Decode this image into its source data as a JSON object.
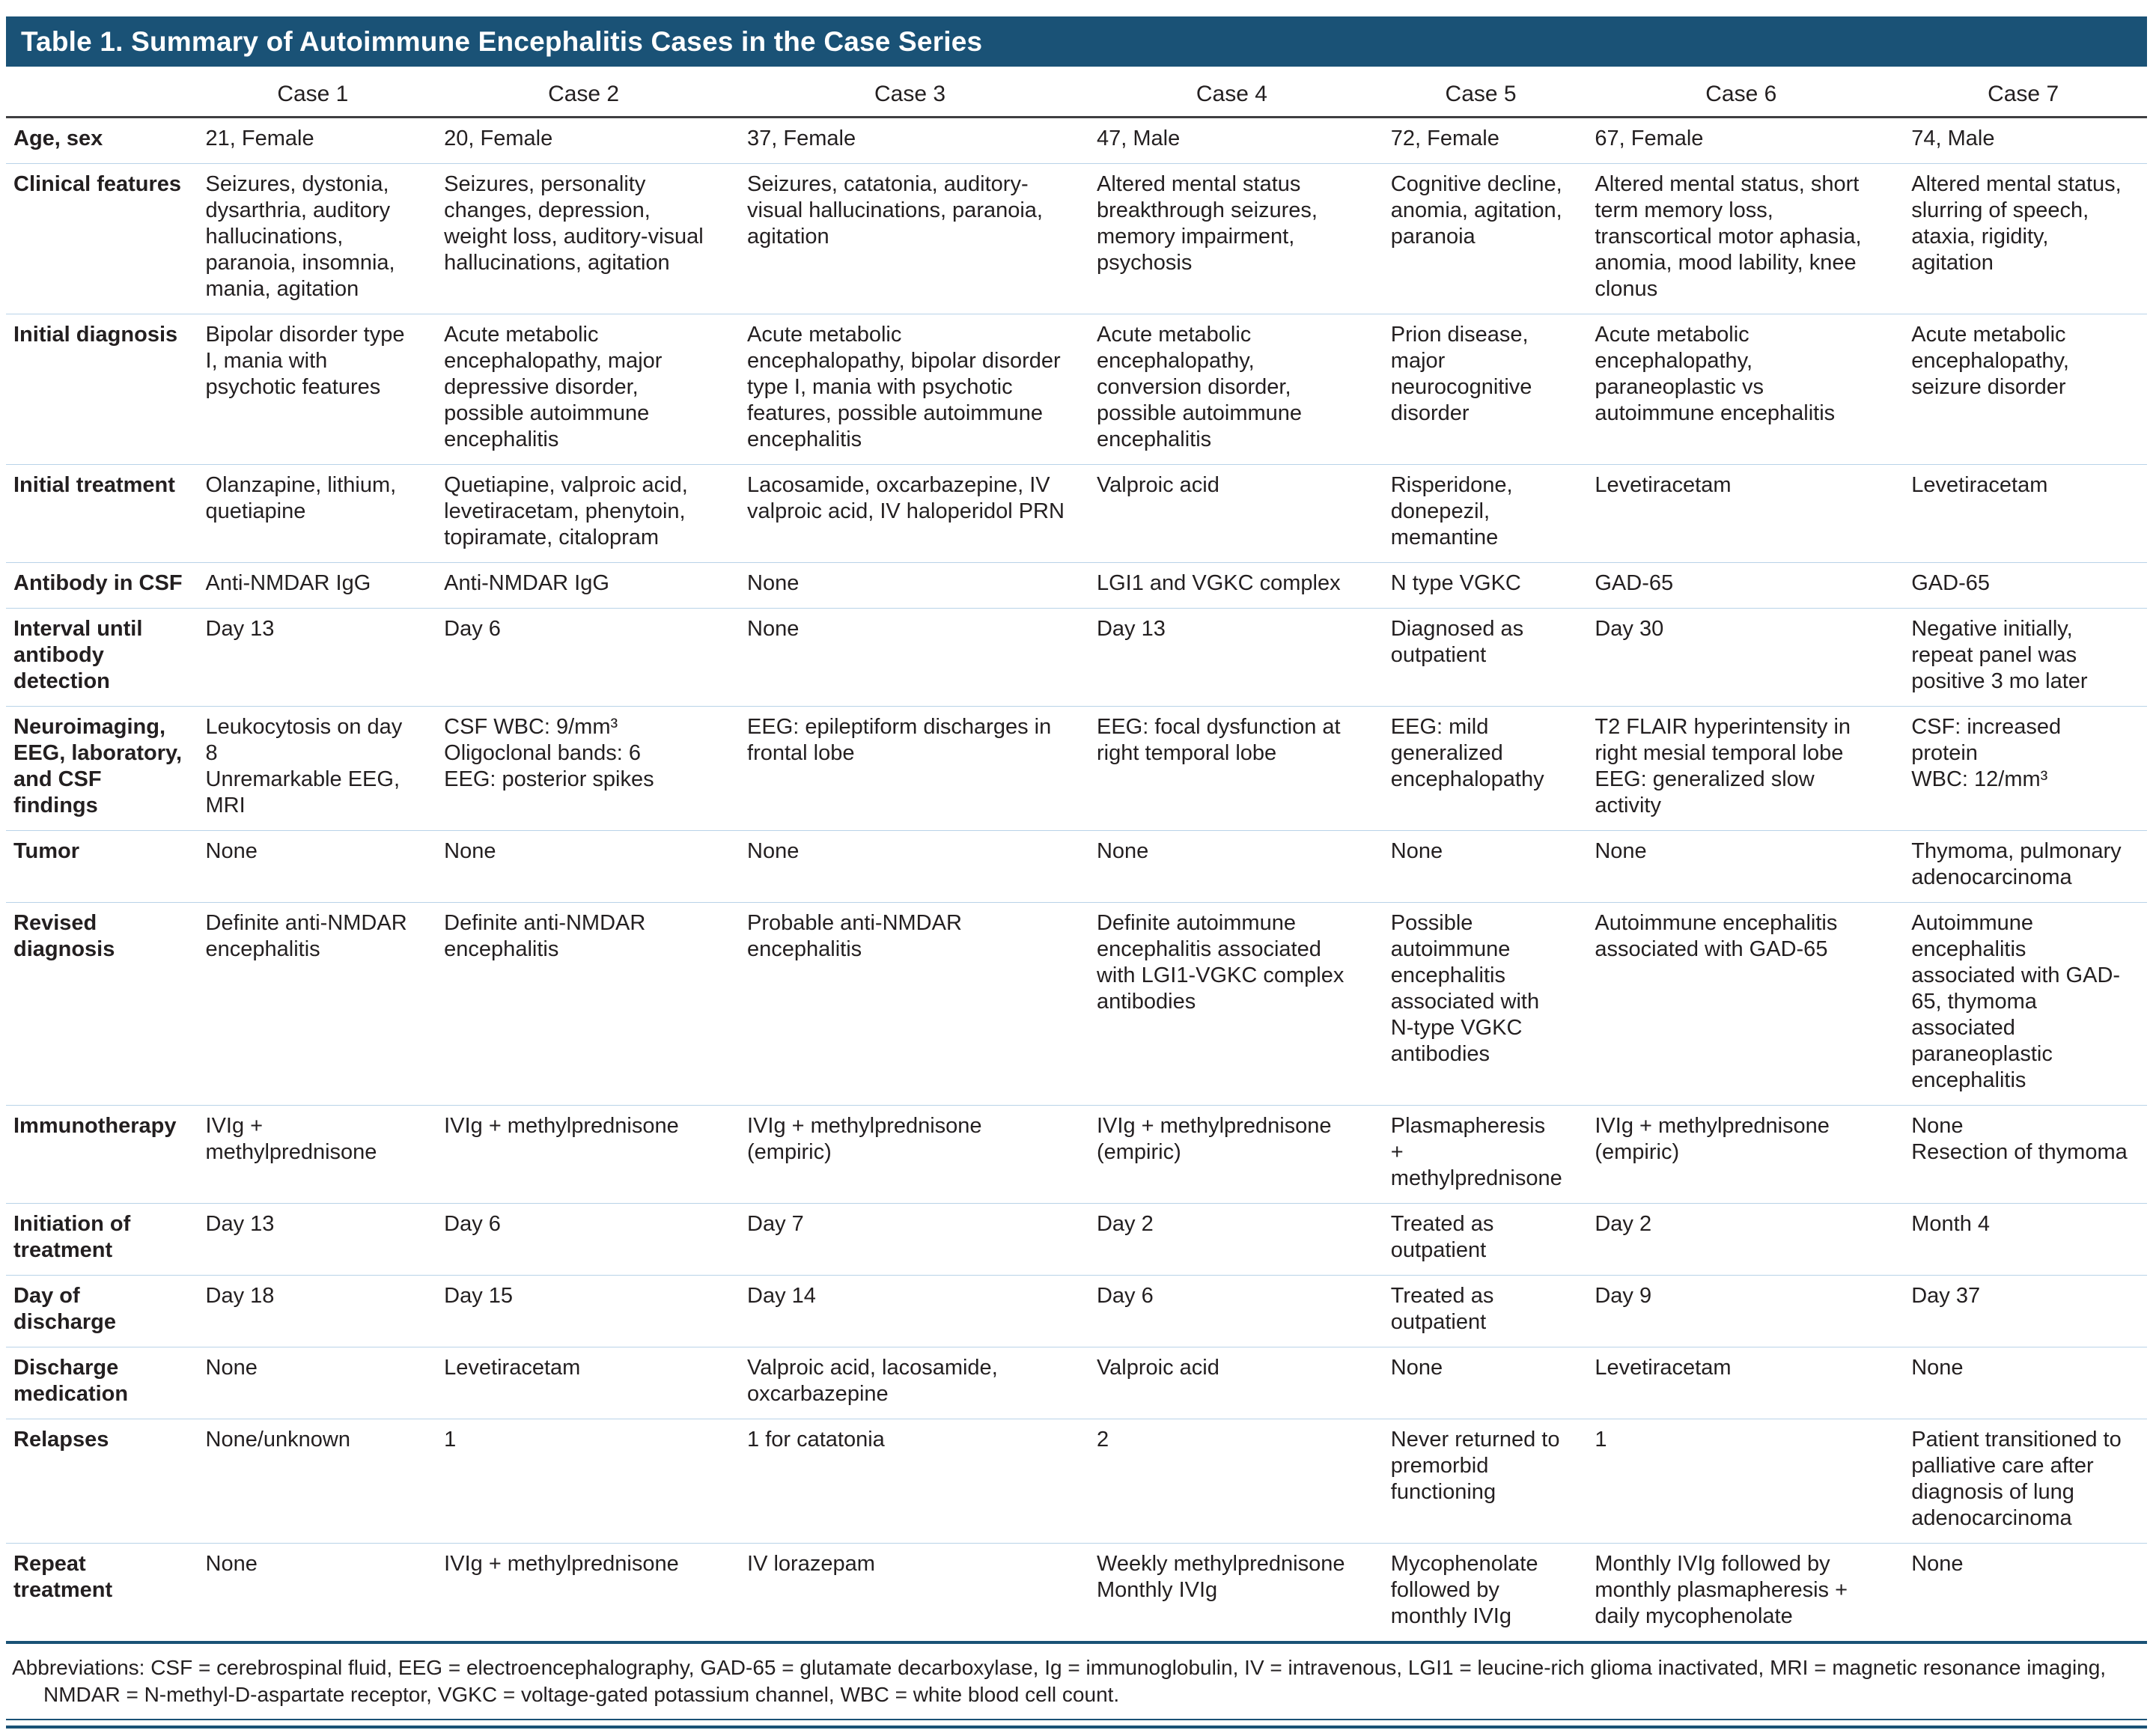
{
  "title": "Table 1. Summary of Autoimmune Encephalitis Cases in the Case Series",
  "colors": {
    "title_bar": "#1a5276",
    "row_divider": "#b9d3e8",
    "header_rule": "#3f3f41",
    "text": "#231f20"
  },
  "columns": [
    "Case 1",
    "Case 2",
    "Case 3",
    "Case 4",
    "Case 5",
    "Case 6",
    "Case 7"
  ],
  "rows": [
    {
      "label": "Age, sex",
      "cells": [
        "21, Female",
        "20, Female",
        "37, Female",
        "47, Male",
        "72, Female",
        "67, Female",
        "74, Male"
      ]
    },
    {
      "label": "Clinical features",
      "cells": [
        "Seizures, dystonia, dysarthria, auditory hallucinations, paranoia, insomnia, mania, agitation",
        "Seizures, personality changes, depression, weight loss, auditory-visual hallucinations, agitation",
        "Seizures, catatonia, auditory-visual hallucinations, paranoia, agitation",
        "Altered mental status breakthrough seizures, memory impairment, psychosis",
        "Cognitive decline, anomia, agitation, paranoia",
        "Altered mental status, short term memory loss, transcortical motor aphasia, anomia, mood lability, knee clonus",
        "Altered mental status, slurring of speech, ataxia, rigidity, agitation"
      ]
    },
    {
      "label": "Initial diagnosis",
      "cells": [
        "Bipolar disorder type I, mania with psychotic features",
        "Acute metabolic encephalopathy, major depressive disorder, possible autoimmune encephalitis",
        "Acute metabolic encephalopathy, bipolar disorder type I, mania with psychotic features, possible autoimmune encephalitis",
        "Acute metabolic encephalopathy, conversion disorder, possible autoimmune encephalitis",
        "Prion disease, major neurocognitive disorder",
        "Acute metabolic encephalopathy, paraneoplastic vs autoimmune encephalitis",
        "Acute metabolic encephalopathy, seizure disorder"
      ]
    },
    {
      "label": "Initial treatment",
      "cells": [
        "Olanzapine, lithium, quetiapine",
        "Quetiapine, valproic acid, levetiracetam, phenytoin, topiramate, citalopram",
        "Lacosamide, oxcarbazepine, IV valproic acid, IV haloperidol PRN",
        "Valproic acid",
        "Risperidone, donepezil, memantine",
        "Levetiracetam",
        "Levetiracetam"
      ]
    },
    {
      "label": "Antibody in CSF",
      "cells": [
        "Anti-NMDAR IgG",
        "Anti-NMDAR IgG",
        "None",
        "LGI1 and VGKC complex",
        "N type VGKC",
        "GAD-65",
        "GAD-65"
      ]
    },
    {
      "label": "Interval until antibody detection",
      "cells": [
        "Day 13",
        "Day 6",
        "None",
        "Day 13",
        "Diagnosed as outpatient",
        "Day 30",
        "Negative initially, repeat panel was positive 3 mo later"
      ]
    },
    {
      "label": "Neuroimaging, EEG, laboratory, and CSF findings",
      "cells": [
        "Leukocytosis on day 8\nUnremarkable EEG, MRI",
        "CSF WBC: 9/mm³\nOligoclonal bands: 6\nEEG: posterior spikes",
        "EEG: epileptiform discharges in frontal lobe",
        "EEG: focal dysfunction at right temporal lobe",
        "EEG: mild generalized encephalopathy",
        "T2 FLAIR hyperintensity in right mesial temporal lobe\nEEG: generalized slow activity",
        "CSF: increased protein\nWBC: 12/mm³"
      ]
    },
    {
      "label": "Tumor",
      "cells": [
        "None",
        "None",
        "None",
        "None",
        "None",
        "None",
        "Thymoma, pulmonary adenocarcinoma"
      ]
    },
    {
      "label": "Revised diagnosis",
      "cells": [
        "Definite anti-NMDAR encephalitis",
        "Definite anti-NMDAR encephalitis",
        "Probable anti-NMDAR encephalitis",
        "Definite autoimmune encephalitis associated with LGI1-VGKC complex antibodies",
        "Possible autoimmune encephalitis associated with N-type VGKC antibodies",
        "Autoimmune encephalitis associated with GAD-65",
        "Autoimmune encephalitis associated with GAD-65, thymoma associated paraneoplastic encephalitis"
      ]
    },
    {
      "label": "Immunotherapy",
      "cells": [
        "IVIg + methylprednisone",
        "IVIg + methylprednisone",
        "IVIg + methylprednisone (empiric)",
        "IVIg + methylprednisone (empiric)",
        "Plasmapheresis + methylprednisone",
        "IVIg + methylprednisone (empiric)",
        "None\nResection of thymoma"
      ]
    },
    {
      "label": "Initiation of treatment",
      "cells": [
        "Day 13",
        "Day 6",
        "Day 7",
        "Day 2",
        "Treated as outpatient",
        "Day 2",
        "Month 4"
      ]
    },
    {
      "label": "Day of discharge",
      "cells": [
        "Day 18",
        "Day 15",
        "Day 14",
        "Day 6",
        "Treated as outpatient",
        "Day 9",
        "Day 37"
      ]
    },
    {
      "label": "Discharge medication",
      "cells": [
        "None",
        "Levetiracetam",
        "Valproic acid, lacosamide, oxcarbazepine",
        "Valproic acid",
        "None",
        "Levetiracetam",
        "None"
      ]
    },
    {
      "label": "Relapses",
      "cells": [
        "None/unknown",
        "1",
        "1 for catatonia",
        "2",
        "Never returned to premorbid functioning",
        "1",
        "Patient transitioned to palliative care after diagnosis of lung adenocarcinoma"
      ]
    },
    {
      "label": "Repeat treatment",
      "cells": [
        "None",
        "IVIg + methylprednisone",
        "IV lorazepam",
        "Weekly methylprednisone\nMonthly IVIg",
        "Mycophenolate followed by monthly IVIg",
        "Monthly IVIg followed by monthly plasmapheresis + daily mycophenolate",
        "None"
      ]
    }
  ],
  "footnote": "Abbreviations: CSF = cerebrospinal fluid, EEG = electroencephalography, GAD-65 = glutamate decarboxylase, Ig = immunoglobulin, IV = intravenous, LGI1 = leucine-rich glioma inactivated, MRI = magnetic resonance imaging, NMDAR = N-methyl-D-aspartate receptor, VGKC = voltage-gated potassium channel, WBC = white blood cell count."
}
